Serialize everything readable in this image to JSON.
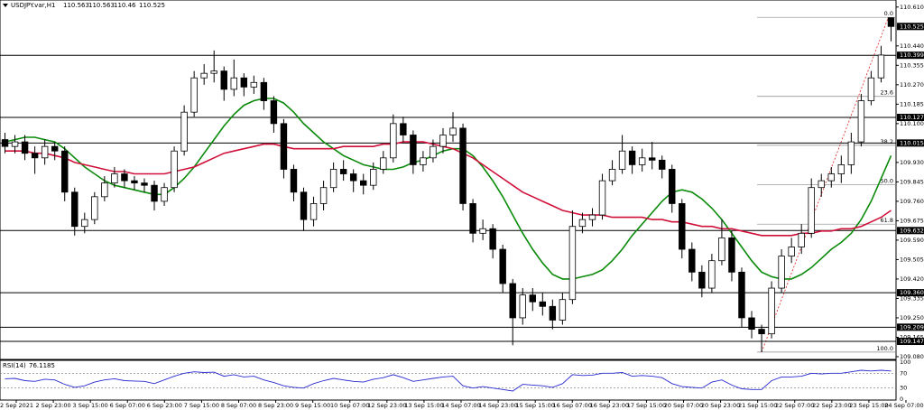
{
  "chart_data": {
    "type": "candlestick",
    "title": "USDJPY.var,H1",
    "open": [
      110.03,
      110.0,
      110.02,
      109.97,
      109.95,
      110.0,
      109.98,
      109.8,
      109.65,
      109.68,
      109.78,
      109.84,
      109.88,
      109.85,
      109.84,
      109.83,
      109.76,
      109.82,
      109.98,
      110.15,
      110.3,
      110.32,
      110.33,
      110.25,
      110.3,
      110.26,
      110.28,
      110.2,
      110.1,
      109.9,
      109.8,
      109.68,
      109.75,
      109.82,
      109.9,
      109.88,
      109.85,
      109.83,
      109.9,
      109.95,
      110.1,
      110.05,
      109.92,
      109.95,
      110.0,
      110.05,
      110.08,
      109.75,
      109.62,
      109.64,
      109.55,
      109.4,
      109.25,
      109.35,
      109.32,
      109.3,
      109.24,
      109.33,
      109.65,
      109.68,
      109.7,
      109.85,
      109.9,
      109.98,
      109.92,
      109.95,
      109.94,
      109.9,
      109.75,
      109.55,
      109.45,
      109.38,
      109.5,
      109.6,
      109.45,
      109.25,
      109.2,
      109.18,
      109.38,
      109.52,
      109.56,
      109.62,
      109.82,
      109.85,
      109.88,
      109.92,
      110.02,
      110.2,
      110.3,
      110.563
    ],
    "high": [
      110.06,
      110.05,
      110.05,
      110.0,
      110.03,
      110.02,
      110.0,
      109.82,
      109.71,
      109.8,
      109.87,
      109.91,
      109.9,
      109.87,
      109.86,
      109.85,
      109.84,
      110.0,
      110.18,
      110.33,
      110.36,
      110.42,
      110.35,
      110.38,
      110.32,
      110.31,
      110.3,
      110.22,
      110.12,
      109.92,
      109.82,
      109.78,
      109.85,
      109.93,
      109.94,
      109.9,
      109.88,
      109.93,
      109.98,
      110.14,
      110.13,
      110.07,
      109.98,
      110.03,
      110.08,
      110.15,
      110.1,
      109.77,
      109.68,
      109.66,
      109.57,
      109.42,
      109.38,
      109.38,
      109.36,
      109.33,
      109.36,
      109.72,
      109.71,
      109.73,
      109.88,
      109.94,
      110.05,
      110.0,
      109.99,
      110.02,
      109.96,
      109.92,
      109.77,
      109.58,
      109.48,
      109.53,
      109.68,
      109.63,
      109.47,
      109.28,
      109.22,
      109.41,
      109.55,
      109.6,
      109.66,
      109.86,
      109.88,
      109.91,
      109.96,
      110.06,
      110.23,
      110.33,
      110.44,
      110.563
    ],
    "low": [
      109.97,
      109.97,
      109.94,
      109.88,
      109.92,
      109.94,
      109.76,
      109.61,
      109.62,
      109.66,
      109.76,
      109.82,
      109.82,
      109.81,
      109.8,
      109.72,
      109.74,
      109.8,
      109.96,
      110.13,
      110.27,
      110.28,
      110.2,
      110.22,
      110.22,
      110.23,
      110.16,
      110.06,
      109.86,
      109.76,
      109.63,
      109.65,
      109.72,
      109.8,
      109.85,
      109.8,
      109.79,
      109.81,
      109.88,
      109.93,
      110.02,
      109.88,
      109.89,
      109.93,
      109.97,
      110.02,
      109.72,
      109.58,
      109.59,
      109.51,
      109.36,
      109.13,
      109.22,
      109.28,
      109.26,
      109.2,
      109.22,
      109.31,
      109.62,
      109.65,
      109.68,
      109.83,
      109.88,
      109.88,
      109.89,
      109.9,
      109.86,
      109.71,
      109.51,
      109.41,
      109.34,
      109.36,
      109.48,
      109.41,
      109.21,
      109.16,
      109.1,
      109.16,
      109.36,
      109.49,
      109.53,
      109.6,
      109.78,
      109.82,
      109.84,
      109.88,
      110.0,
      110.18,
      110.28,
      110.46
    ],
    "close": [
      110.0,
      110.02,
      109.97,
      109.95,
      110.0,
      109.98,
      109.8,
      109.65,
      109.68,
      109.78,
      109.84,
      109.88,
      109.85,
      109.84,
      109.83,
      109.76,
      109.82,
      109.98,
      110.15,
      110.3,
      110.32,
      110.33,
      110.25,
      110.3,
      110.26,
      110.28,
      110.2,
      110.1,
      109.9,
      109.8,
      109.68,
      109.75,
      109.82,
      109.9,
      109.88,
      109.85,
      109.83,
      109.9,
      109.95,
      110.1,
      110.05,
      109.92,
      109.95,
      110.0,
      110.05,
      110.08,
      109.75,
      109.62,
      109.64,
      109.55,
      109.4,
      109.25,
      109.35,
      109.32,
      109.3,
      109.24,
      109.33,
      109.65,
      109.68,
      109.7,
      109.85,
      109.9,
      109.98,
      109.92,
      109.95,
      109.94,
      109.9,
      109.75,
      109.55,
      109.45,
      109.38,
      109.5,
      109.6,
      109.45,
      109.25,
      109.2,
      109.18,
      109.38,
      109.52,
      109.56,
      109.62,
      109.82,
      109.85,
      109.88,
      109.92,
      110.02,
      110.2,
      110.3,
      110.4,
      110.525
    ],
    "series": [
      {
        "color": "#0a8a0a",
        "values": [
          110.02,
          110.03,
          110.04,
          110.04,
          110.03,
          110.02,
          109.99,
          109.95,
          109.91,
          109.88,
          109.85,
          109.83,
          109.82,
          109.81,
          109.8,
          109.79,
          109.79,
          109.82,
          109.86,
          109.91,
          109.97,
          110.03,
          110.09,
          110.14,
          110.18,
          110.2,
          110.21,
          110.21,
          110.19,
          110.15,
          110.1,
          110.06,
          110.02,
          109.99,
          109.96,
          109.94,
          109.92,
          109.91,
          109.9,
          109.9,
          109.91,
          109.93,
          109.94,
          109.96,
          109.98,
          109.99,
          109.99,
          109.96,
          109.91,
          109.85,
          109.78,
          109.7,
          109.62,
          109.55,
          109.49,
          109.44,
          109.42,
          109.42,
          109.43,
          109.44,
          109.46,
          109.5,
          109.55,
          109.61,
          109.66,
          109.71,
          109.76,
          109.8,
          109.81,
          109.8,
          109.77,
          109.73,
          109.68,
          109.62,
          109.56,
          109.5,
          109.45,
          109.43,
          109.42,
          109.42,
          109.44,
          109.47,
          109.51,
          109.55,
          109.58,
          109.62,
          109.68,
          109.76,
          109.86,
          109.96
        ]
      },
      {
        "color": "#d0103a",
        "values": [
          109.98,
          109.98,
          109.98,
          109.97,
          109.97,
          109.96,
          109.95,
          109.93,
          109.92,
          109.91,
          109.9,
          109.89,
          109.89,
          109.88,
          109.88,
          109.88,
          109.88,
          109.89,
          109.9,
          109.91,
          109.93,
          109.95,
          109.97,
          109.98,
          109.99,
          110.0,
          110.01,
          110.01,
          110.0,
          109.99,
          109.99,
          109.99,
          109.99,
          109.99,
          110.0,
          110.0,
          110.0,
          110.0,
          110.01,
          110.01,
          110.02,
          110.02,
          110.02,
          110.01,
          110.0,
          109.99,
          109.97,
          109.95,
          109.92,
          109.89,
          109.86,
          109.83,
          109.8,
          109.78,
          109.76,
          109.74,
          109.72,
          109.71,
          109.7,
          109.7,
          109.7,
          109.69,
          109.69,
          109.69,
          109.69,
          109.68,
          109.68,
          109.67,
          109.67,
          109.66,
          109.65,
          109.65,
          109.64,
          109.64,
          109.63,
          109.62,
          109.61,
          109.61,
          109.61,
          109.61,
          109.62,
          109.62,
          109.63,
          109.63,
          109.64,
          109.64,
          109.65,
          109.67,
          109.69,
          109.72
        ]
      }
    ],
    "ylim": [
      109.068,
      110.625
    ],
    "yticks": [
      {
        "value": 110.61,
        "label": "110.610"
      },
      {
        "value": 110.44,
        "label": "110.440"
      },
      {
        "value": 110.355,
        "label": "110.355"
      },
      {
        "value": 110.27,
        "label": "110.270"
      },
      {
        "value": 110.185,
        "label": "110.185"
      },
      {
        "value": 110.1,
        "label": "110.100"
      },
      {
        "value": 109.93,
        "label": "109.930"
      },
      {
        "value": 109.845,
        "label": "109.845"
      },
      {
        "value": 109.76,
        "label": "109.760"
      },
      {
        "value": 109.675,
        "label": "109.675"
      },
      {
        "value": 109.59,
        "label": "109.590"
      },
      {
        "value": 109.505,
        "label": "109.505"
      },
      {
        "value": 109.42,
        "label": "109.420"
      },
      {
        "value": 109.335,
        "label": "109.335"
      },
      {
        "value": 109.25,
        "label": "109.250"
      },
      {
        "value": 109.165,
        "label": "109.165"
      },
      {
        "value": 109.08,
        "label": "109.080"
      }
    ],
    "levels": [
      {
        "value": 110.399,
        "label": "110.399"
      },
      {
        "value": 110.127,
        "label": "110.127"
      },
      {
        "value": 110.015,
        "label": "110.015"
      },
      {
        "value": 109.632,
        "label": "109.632"
      },
      {
        "value": 109.36,
        "label": "109.360"
      },
      {
        "value": 109.209,
        "label": "109.209"
      },
      {
        "value": 109.147,
        "label": "109.147"
      }
    ],
    "fibonacci": [
      {
        "value": 110.565,
        "label": "0.0"
      },
      {
        "value": 110.219,
        "label": "23.6"
      },
      {
        "value": 110.005,
        "label": "38.2"
      },
      {
        "value": 109.833,
        "label": "50.0"
      },
      {
        "value": 109.66,
        "label": "61.8"
      },
      {
        "value": 109.1,
        "label": "100.0"
      }
    ],
    "xtick_labels": [
      "2 Sep 2021",
      "2 Sep 23:00",
      "3 Sep 15:00",
      "6 Sep 07:00",
      "6 Sep 23:00",
      "7 Sep 15:00",
      "8 Sep 07:00",
      "8 Sep 23:00",
      "9 Sep 15:00",
      "10 Sep 07:00",
      "12 Sep 23:00",
      "13 Sep 15:00",
      "14 Sep 07:00",
      "14 Sep 23:00",
      "15 Sep 15:00",
      "16 Sep 07:00",
      "16 Sep 23:00",
      "17 Sep 15:00",
      "20 Sep 07:00",
      "20 Sep 23:00",
      "21 Sep 15:00",
      "22 Sep 07:00",
      "22 Sep 23:00",
      "23 Sep 15:00",
      "24 Sep 07:00"
    ],
    "rsi": {
      "name": "RSI(14)",
      "color": "#2a2ad0",
      "ylim": [
        0,
        100
      ],
      "yticks": [
        100,
        70,
        30,
        0
      ],
      "values": [
        55,
        56,
        50,
        48,
        54,
        52,
        40,
        32,
        36,
        46,
        52,
        55,
        50,
        49,
        48,
        42,
        52,
        62,
        70,
        74,
        72,
        73,
        62,
        66,
        60,
        62,
        52,
        45,
        36,
        32,
        30,
        42,
        50,
        56,
        52,
        48,
        46,
        54,
        58,
        66,
        58,
        48,
        52,
        56,
        60,
        62,
        36,
        30,
        34,
        30,
        26,
        22,
        40,
        38,
        36,
        32,
        42,
        66,
        64,
        65,
        70,
        70,
        72,
        62,
        64,
        62,
        58,
        42,
        34,
        32,
        30,
        46,
        52,
        38,
        28,
        26,
        26,
        50,
        60,
        60,
        62,
        70,
        68,
        70,
        70,
        74,
        78,
        76,
        78,
        76.1185
      ]
    }
  }
}
